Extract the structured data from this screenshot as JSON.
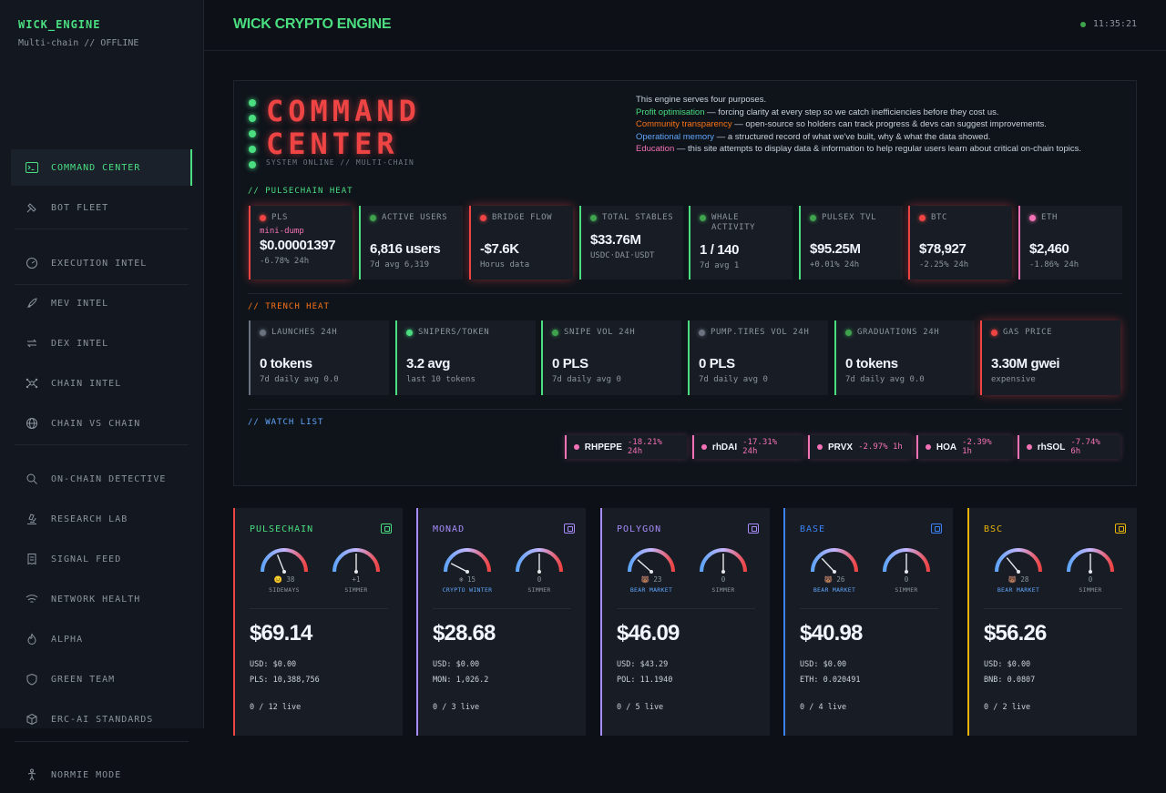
{
  "brand": {
    "name": "WICK_ENGINE",
    "subtitle": "Multi-chain // OFFLINE"
  },
  "sidebar": {
    "items": [
      {
        "label": "COMMAND CENTER",
        "icon": "terminal-icon",
        "active": true
      },
      {
        "label": "BOT FLEET",
        "icon": "satellite-icon"
      },
      {
        "label": "EXECUTION INTEL",
        "icon": "gauge-icon"
      },
      {
        "label": "MEV INTEL",
        "icon": "rocket-icon"
      },
      {
        "label": "DEX INTEL",
        "icon": "swap-icon"
      },
      {
        "label": "CHAIN INTEL",
        "icon": "network-icon"
      },
      {
        "label": "CHAIN VS CHAIN",
        "icon": "globe-icon"
      },
      {
        "label": "ON-CHAIN DETECTIVE",
        "icon": "search-icon"
      },
      {
        "label": "RESEARCH LAB",
        "icon": "microscope-icon"
      },
      {
        "label": "SIGNAL FEED",
        "icon": "receipt-icon"
      },
      {
        "label": "NETWORK HEALTH",
        "icon": "wifi-icon"
      },
      {
        "label": "ALPHA",
        "icon": "flame-icon"
      },
      {
        "label": "GREEN TEAM",
        "icon": "shield-icon"
      },
      {
        "label": "ERC-AI STANDARDS",
        "icon": "cube-icon"
      },
      {
        "label": "NORMIE MODE",
        "icon": "person-icon"
      }
    ]
  },
  "header": {
    "title": "WICK CRYPTO ENGINE",
    "clock": "11:35:21"
  },
  "command_center": {
    "title_line1": "COMMAND",
    "title_line2": "CENTER",
    "status": "SYSTEM ONLINE // MULTI-CHAIN",
    "purpose_intro": "This engine serves four purposes.",
    "purposes": [
      {
        "name": "Profit optimisation",
        "text": " — forcing clarity at every step so we catch inefficiencies before they cost us.",
        "color": "#4ade80"
      },
      {
        "name": "Community transparency",
        "text": " — open-source so holders can track progress & devs can suggest improvements.",
        "color": "#f97316"
      },
      {
        "name": "Operational memory",
        "text": " — a structured record of what we've built, why & what the data showed.",
        "color": "#60a5fa"
      },
      {
        "name": "Education",
        "text": " — this site attempts to display data & information to help regular users learn about critical on-chain topics.",
        "color": "#f472b6"
      }
    ]
  },
  "pulse_heat": {
    "label": "// PULSECHAIN HEAT",
    "cards": [
      {
        "label": "PLS",
        "tag": "mini-dump",
        "value": "$0.00001397",
        "foot": "-6.78% 24h",
        "style": "red",
        "dot": "#ef4444"
      },
      {
        "label": "ACTIVE USERS",
        "value": "6,816 users",
        "foot": "7d avg 6,319",
        "style": "green",
        "dot": "#3fa34d"
      },
      {
        "label": "BRIDGE FLOW",
        "value": "-$7.6K",
        "foot": "Horus data",
        "style": "red",
        "dot": "#ef4444"
      },
      {
        "label": "TOTAL STABLES",
        "value": "$33.76M",
        "foot": "USDC·DAI·USDT",
        "style": "green",
        "dot": "#3fa34d"
      },
      {
        "label": "WHALE ACTIVITY",
        "value": "1 / 140",
        "foot": "7d avg 1",
        "style": "green",
        "dot": "#3fa34d"
      },
      {
        "label": "PULSEX TVL",
        "value": "$95.25M",
        "foot": "+0.01% 24h",
        "style": "green",
        "dot": "#3fa34d"
      },
      {
        "label": "BTC",
        "value": "$78,927",
        "foot": "-2.25% 24h",
        "style": "red",
        "dot": "#ef4444"
      },
      {
        "label": "ETH",
        "value": "$2,460",
        "foot": "-1.86% 24h",
        "style": "pink",
        "dot": "#f472b6"
      }
    ]
  },
  "trench_heat": {
    "label": "// TRENCH HEAT",
    "cards": [
      {
        "label": "LAUNCHES 24H",
        "value": "0 tokens",
        "foot": "7d daily avg 0.0",
        "style": "grey",
        "dot": "#6b7280"
      },
      {
        "label": "SNIPERS/TOKEN",
        "value": "3.2 avg",
        "foot": "last 10 tokens",
        "style": "green",
        "dot": "#4ade80"
      },
      {
        "label": "SNIPE VOL 24H",
        "value": "0 PLS",
        "foot": "7d daily avg 0",
        "style": "green",
        "dot": "#3fa34d"
      },
      {
        "label": "PUMP.TIRES VOL 24H",
        "value": "0 PLS",
        "foot": "7d daily avg 0",
        "style": "green",
        "dot": "#6b7280"
      },
      {
        "label": "GRADUATIONS 24H",
        "value": "0 tokens",
        "foot": "7d daily avg 0.0",
        "style": "green",
        "dot": "#3fa34d"
      },
      {
        "label": "GAS PRICE",
        "value": "3.30M gwei",
        "foot": "expensive",
        "style": "red",
        "dot": "#ef4444"
      }
    ]
  },
  "watch_list": {
    "label": "// WATCH LIST",
    "items": [
      {
        "symbol": "RHPEPE",
        "change": "-18.21% 24h"
      },
      {
        "symbol": "rhDAI",
        "change": "-17.31% 24h"
      },
      {
        "symbol": "PRVX",
        "change": "-2.97% 1h"
      },
      {
        "symbol": "HOA",
        "change": "-2.39% 1h"
      },
      {
        "symbol": "rhSOL",
        "change": "-7.74% 6h"
      }
    ]
  },
  "chains": [
    {
      "name": "PULSECHAIN",
      "color": "#ef4444",
      "name_color": "#4ade80",
      "icon_color": "#4ade80",
      "g1_value": "😐 38",
      "g1_label": "SIDEWAYS",
      "g1_level": 0.38,
      "g1_label_color": "#8b949e",
      "g2_value": "+1",
      "g2_label": "SIMMER",
      "g2_level": 0.5,
      "price": "$69.14",
      "usd": "USD: $0.00",
      "native": "PLS: 10,388,756",
      "live": "0 / 12 live"
    },
    {
      "name": "MONAD",
      "color": "#a78bfa",
      "name_color": "#a78bfa",
      "icon_color": "#a78bfa",
      "g1_value": "❄ 15",
      "g1_label": "CRYPTO WINTER",
      "g1_level": 0.15,
      "g1_label_color": "#60a5fa",
      "g2_value": "0",
      "g2_label": "SIMMER",
      "g2_level": 0.5,
      "price": "$28.68",
      "usd": "USD: $0.00",
      "native": "MON: 1,026.2",
      "live": "0 / 3 live"
    },
    {
      "name": "POLYGON",
      "color": "#a78bfa",
      "name_color": "#a78bfa",
      "icon_color": "#a78bfa",
      "g1_value": "🐻 23",
      "g1_label": "BEAR MARKET",
      "g1_level": 0.23,
      "g1_label_color": "#60a5fa",
      "g2_value": "0",
      "g2_label": "SIMMER",
      "g2_level": 0.5,
      "price": "$46.09",
      "usd": "USD: $43.29",
      "native": "POL: 11.1940",
      "live": "0 / 5 live"
    },
    {
      "name": "BASE",
      "color": "#3b82f6",
      "name_color": "#3b82f6",
      "icon_color": "#3b82f6",
      "g1_value": "🐻 26",
      "g1_label": "BEAR MARKET",
      "g1_level": 0.26,
      "g1_label_color": "#60a5fa",
      "g2_value": "0",
      "g2_label": "SIMMER",
      "g2_level": 0.5,
      "price": "$40.98",
      "usd": "USD: $0.00",
      "native": "ETH: 0.020491",
      "live": "0 / 4 live"
    },
    {
      "name": "BSC",
      "color": "#eab308",
      "name_color": "#eab308",
      "icon_color": "#eab308",
      "g1_value": "🐻 28",
      "g1_label": "BEAR MARKET",
      "g1_level": 0.28,
      "g1_label_color": "#60a5fa",
      "g2_value": "0",
      "g2_label": "SIMMER",
      "g2_level": 0.5,
      "price": "$56.26",
      "usd": "USD: $0.00",
      "native": "BNB: 0.0807",
      "live": "0 / 2 live"
    }
  ]
}
